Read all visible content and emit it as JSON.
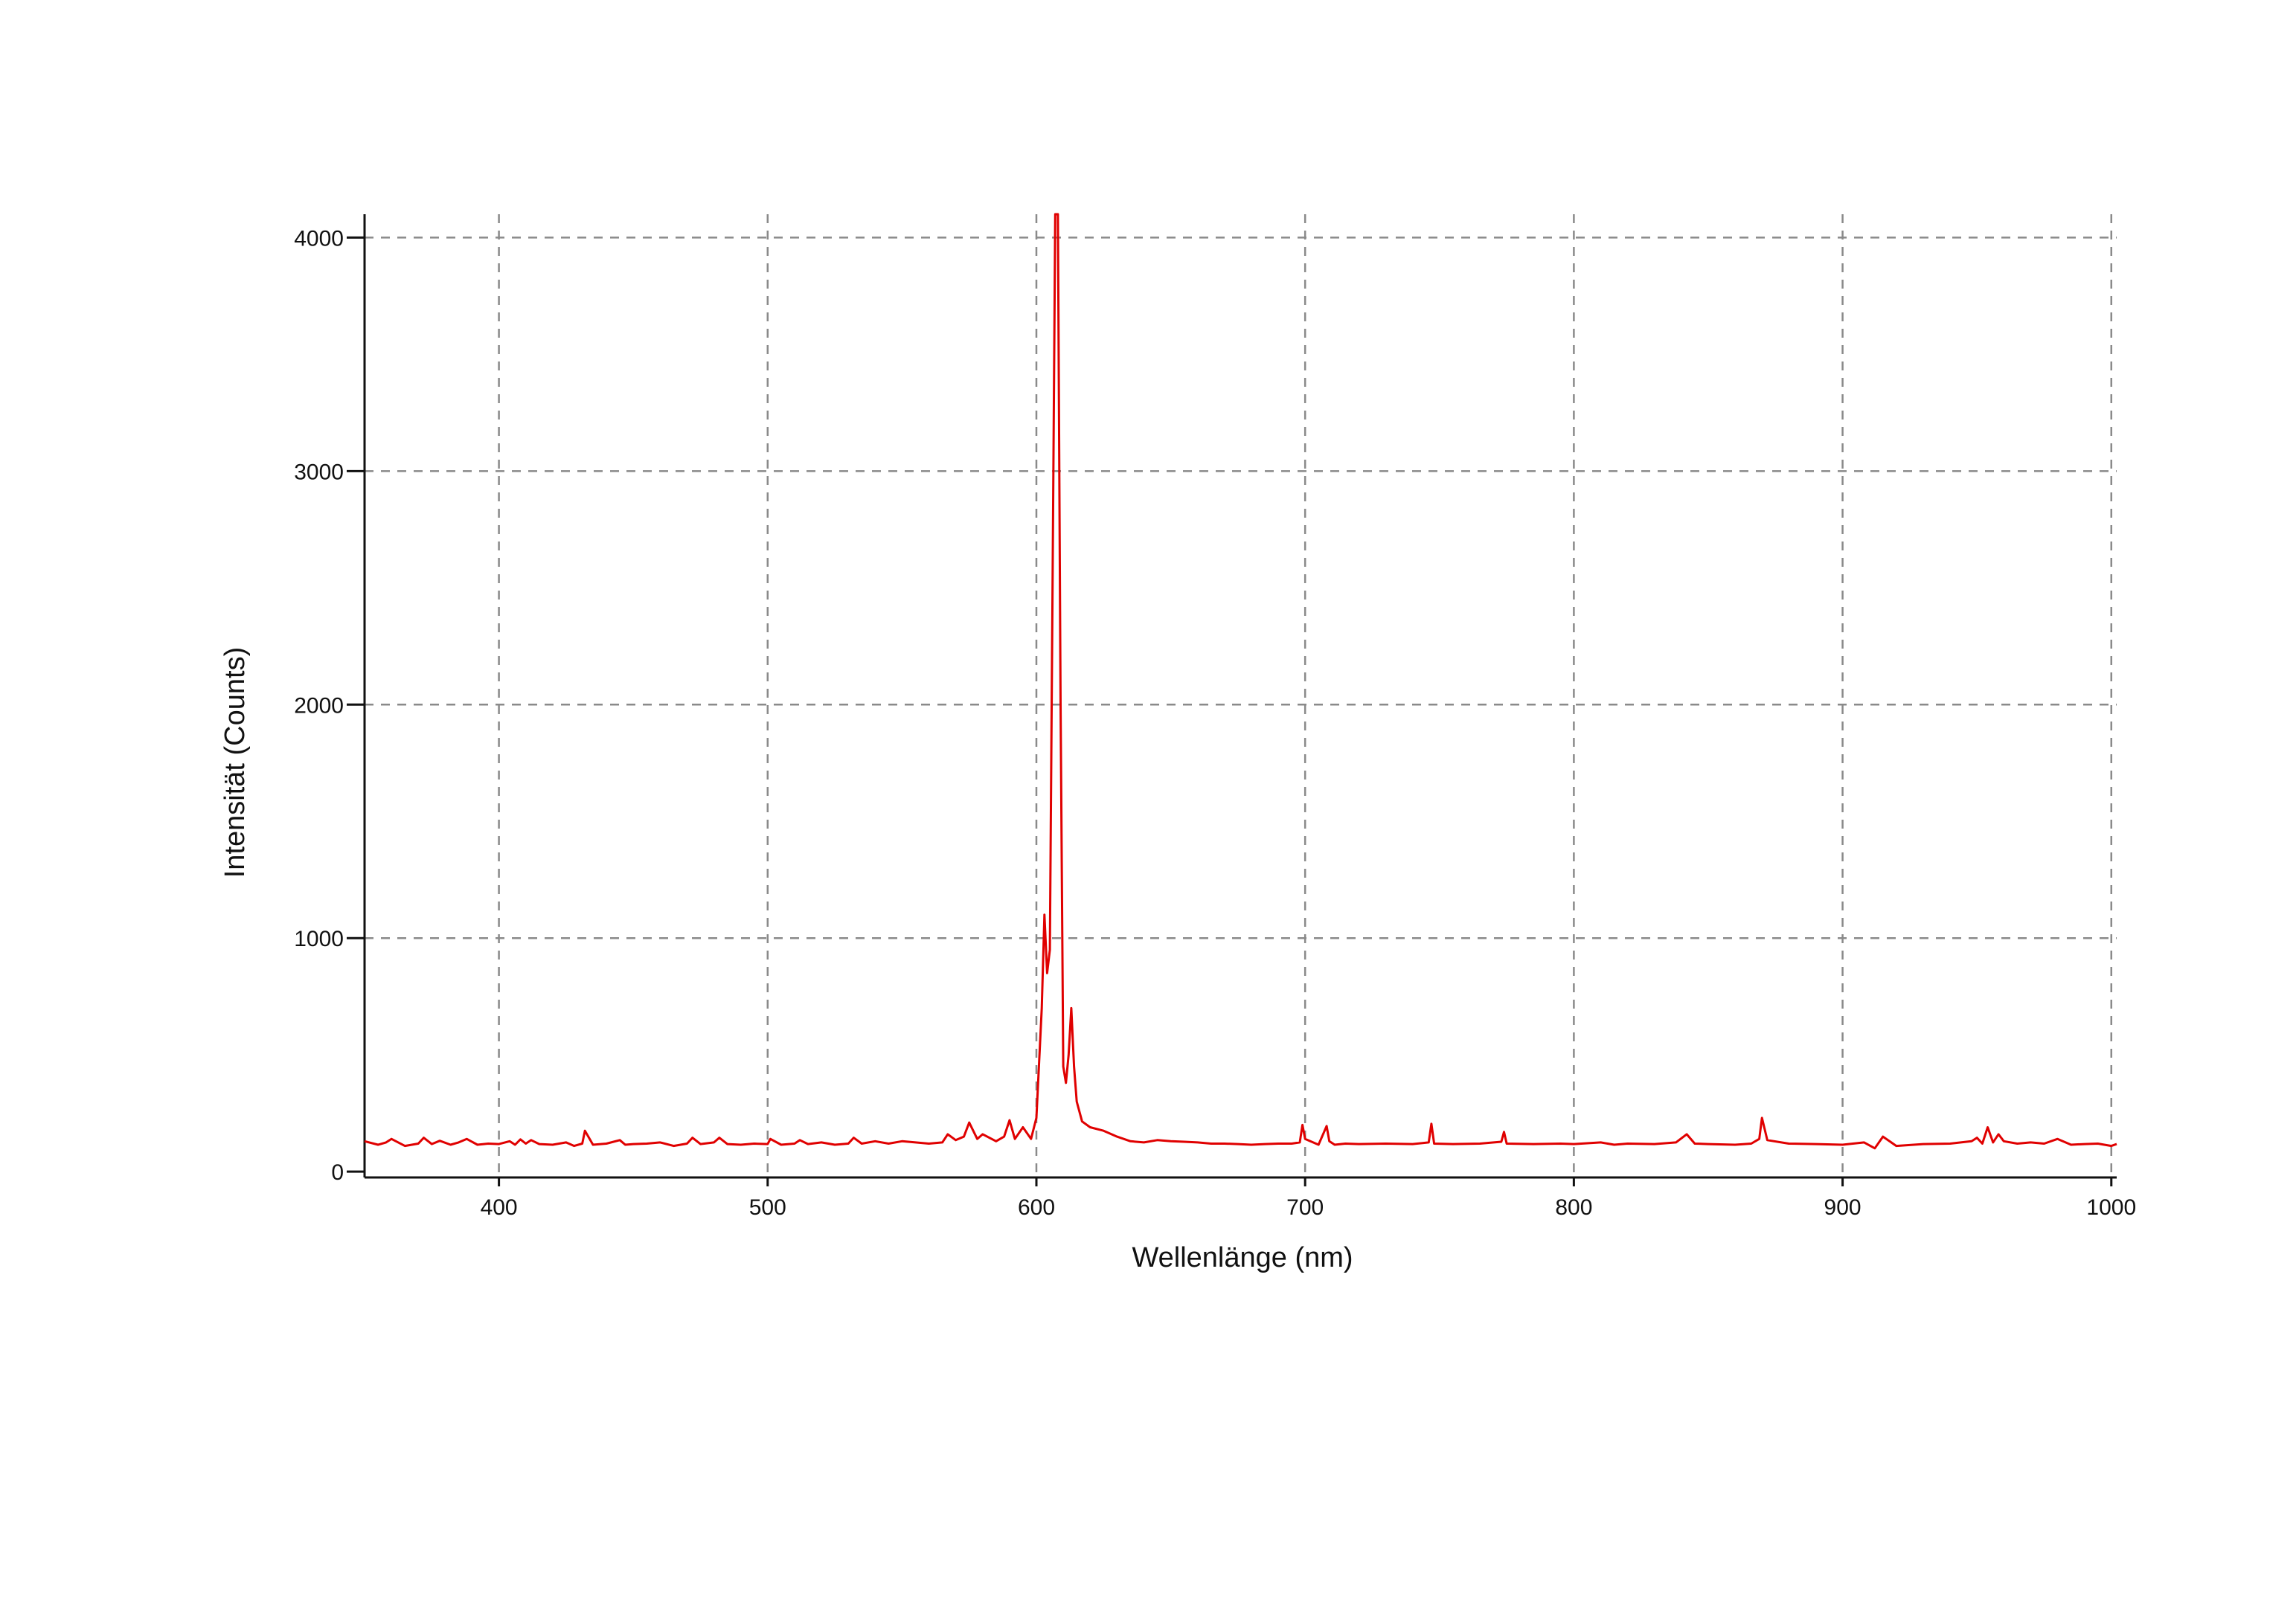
{
  "chart_data": {
    "type": "line",
    "xlabel": "Wellenlänge (nm)",
    "ylabel": "Intensität (Counts)",
    "xlim": [
      350,
      1002
    ],
    "ylim": [
      -25,
      4100
    ],
    "x_ticks": [
      400,
      500,
      600,
      700,
      800,
      900,
      1000
    ],
    "y_ticks": [
      0,
      1000,
      2000,
      3000,
      4000
    ],
    "x_tick_labels": [
      "400",
      "500",
      "600",
      "700",
      "800",
      "900",
      "1000"
    ],
    "y_tick_labels": [
      "0",
      "1000",
      "2000",
      "3000",
      "4000"
    ],
    "grid": true,
    "grid_style": "dashed",
    "legend": false,
    "series": [
      {
        "color": "#e00000",
        "x": [
          350,
          355,
          358,
          360,
          365,
          370,
          372,
          375,
          378,
          382,
          385,
          388,
          392,
          396,
          400,
          404,
          406,
          408,
          410,
          412,
          415,
          420,
          425,
          428,
          431,
          432,
          435,
          440,
          445,
          447,
          450,
          455,
          460,
          465,
          470,
          472,
          475,
          480,
          482,
          485,
          490,
          495,
          500,
          501,
          505,
          510,
          512,
          515,
          520,
          525,
          530,
          532,
          535,
          540,
          545,
          550,
          555,
          560,
          565,
          567,
          570,
          573,
          575,
          578,
          580,
          585,
          588,
          590,
          592,
          595,
          598,
          600,
          602,
          603,
          604,
          605,
          606,
          607,
          608,
          609,
          610,
          611,
          612,
          613,
          614,
          615,
          617,
          620,
          625,
          630,
          635,
          640,
          645,
          650,
          655,
          660,
          665,
          670,
          675,
          680,
          685,
          690,
          695,
          698,
          699,
          700,
          705,
          708,
          709,
          711,
          715,
          720,
          730,
          740,
          746,
          747,
          748,
          755,
          765,
          773,
          774,
          775,
          785,
          795,
          800,
          810,
          815,
          820,
          830,
          838,
          842,
          845,
          850,
          860,
          866,
          869,
          870,
          872,
          880,
          890,
          900,
          908,
          912,
          915,
          920,
          930,
          940,
          948,
          950,
          952,
          954,
          956,
          958,
          960,
          965,
          970,
          975,
          980,
          985,
          990,
          995,
          1000,
          1002
        ],
        "y": [
          130,
          115,
          125,
          140,
          110,
          120,
          145,
          118,
          132,
          115,
          125,
          140,
          115,
          120,
          118,
          130,
          115,
          138,
          120,
          135,
          118,
          115,
          125,
          110,
          120,
          175,
          115,
          120,
          135,
          115,
          118,
          120,
          125,
          110,
          120,
          145,
          118,
          125,
          145,
          118,
          115,
          120,
          118,
          140,
          115,
          120,
          135,
          118,
          125,
          115,
          120,
          145,
          120,
          130,
          120,
          130,
          125,
          120,
          125,
          160,
          135,
          150,
          210,
          140,
          160,
          130,
          150,
          220,
          140,
          190,
          140,
          230,
          700,
          1100,
          850,
          950,
          2500,
          4100,
          4100,
          2000,
          450,
          380,
          500,
          700,
          450,
          300,
          215,
          190,
          175,
          150,
          130,
          125,
          135,
          130,
          128,
          125,
          120,
          120,
          118,
          115,
          118,
          120,
          120,
          125,
          200,
          140,
          115,
          195,
          130,
          115,
          120,
          118,
          120,
          118,
          125,
          205,
          120,
          118,
          120,
          128,
          170,
          120,
          118,
          120,
          118,
          125,
          115,
          120,
          118,
          125,
          160,
          120,
          118,
          115,
          120,
          140,
          230,
          135,
          120,
          118,
          115,
          125,
          100,
          150,
          110,
          118,
          120,
          130,
          145,
          120,
          190,
          125,
          160,
          130,
          120,
          125,
          120,
          140,
          115,
          118,
          120,
          110,
          118
        ]
      }
    ]
  }
}
